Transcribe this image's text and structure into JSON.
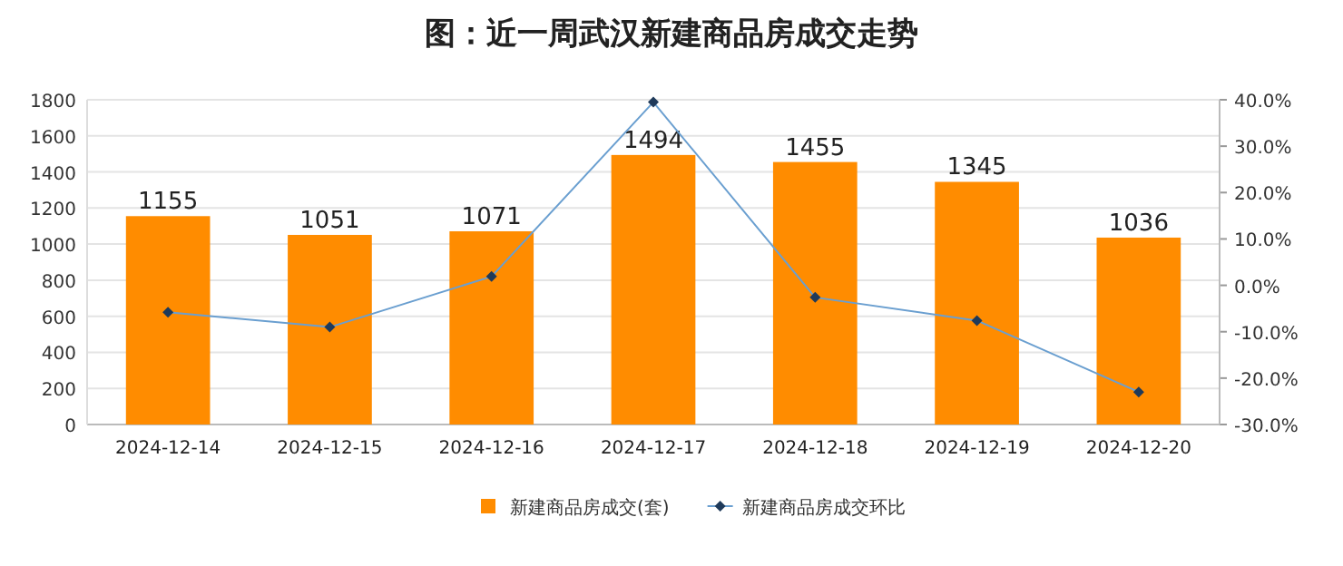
{
  "chart_data": {
    "type": "bar",
    "title": "图：近一周武汉新建商品房成交走势",
    "categories": [
      "2024-12-14",
      "2024-12-15",
      "2024-12-16",
      "2024-12-17",
      "2024-12-18",
      "2024-12-19",
      "2024-12-20"
    ],
    "series": [
      {
        "name": "新建商品房成交(套)",
        "color": "#ff8c00",
        "values": [
          1155,
          1051,
          1071,
          1494,
          1455,
          1345,
          1036
        ],
        "value_labels": [
          "1155",
          "1051",
          "1071",
          "1494",
          "1455",
          "1345",
          "1036"
        ]
      },
      {
        "name": "新建商品房成交环比",
        "type": "line",
        "axis": "y2",
        "color": "#6a9fd0",
        "marker": "diamond",
        "values": [
          -5.8,
          -9.0,
          1.9,
          39.5,
          -2.6,
          -7.6,
          -23.0
        ]
      }
    ],
    "ylim": [
      0,
      1800
    ],
    "yticks": [
      0,
      200,
      400,
      600,
      800,
      1000,
      1200,
      1400,
      1600,
      1800
    ],
    "y2lim": [
      -30,
      40
    ],
    "y2ticks": [
      {
        "value": -30,
        "label": "-30.0%"
      },
      {
        "value": -20,
        "label": "-20.0%"
      },
      {
        "value": -10,
        "label": "-10.0%"
      },
      {
        "value": 0,
        "label": "0.0%"
      },
      {
        "value": 10,
        "label": "10.0%"
      },
      {
        "value": 20,
        "label": "20.0%"
      },
      {
        "value": 30,
        "label": "30.0%"
      },
      {
        "value": 40,
        "label": "40.0%"
      }
    ],
    "grid": "y",
    "legend": "bottom"
  }
}
